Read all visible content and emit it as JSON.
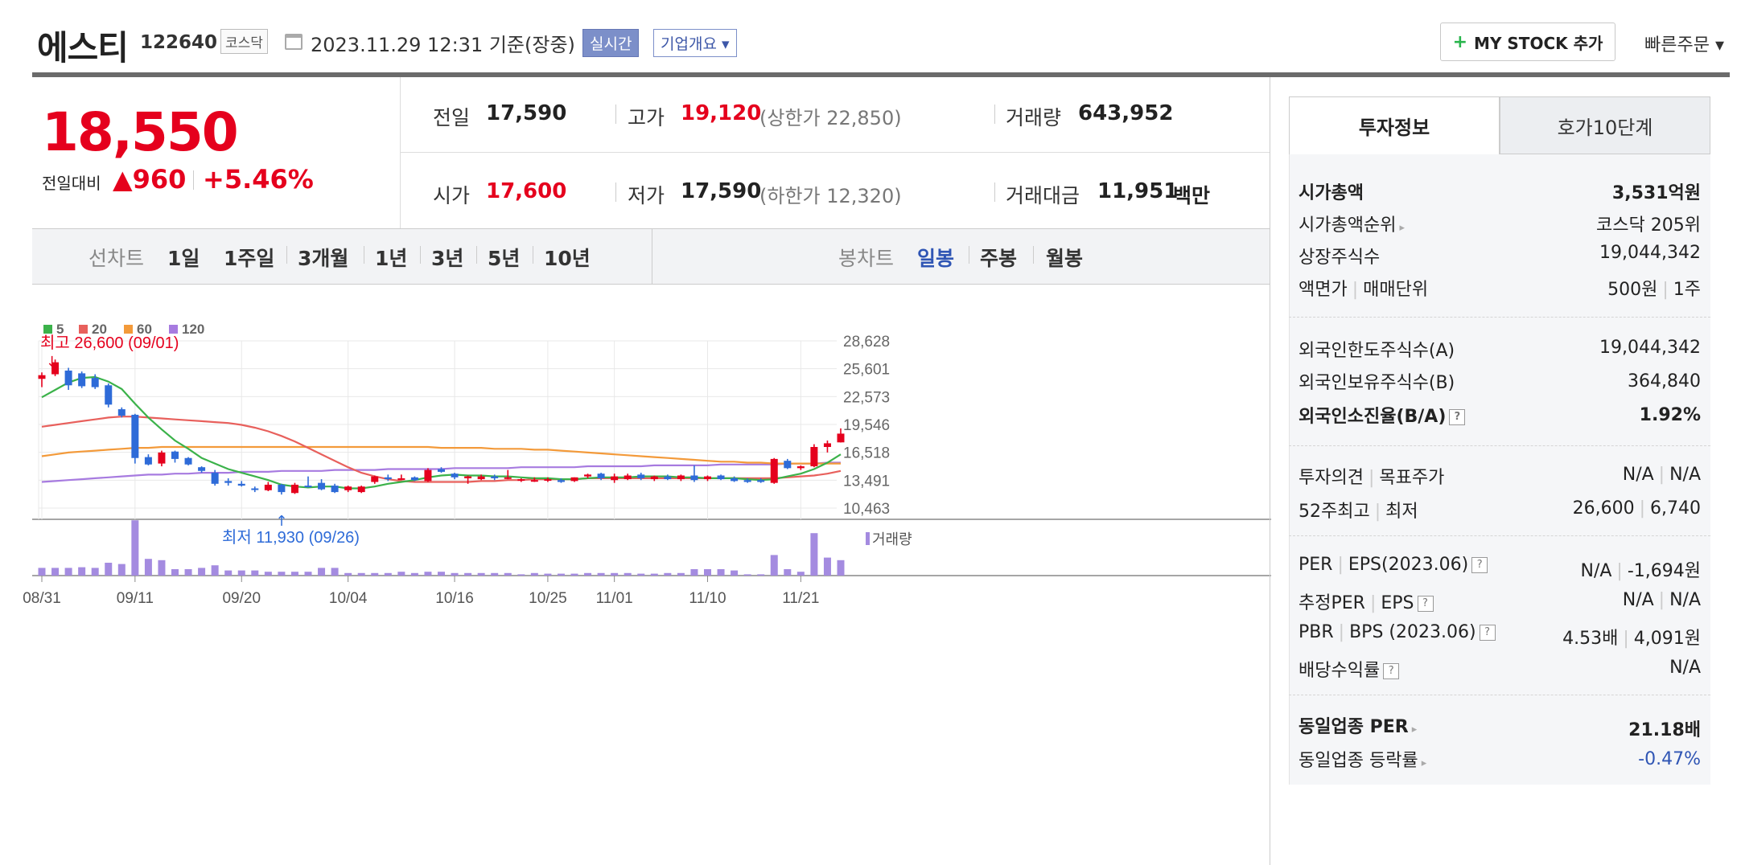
{
  "header": {
    "name": "에스티",
    "code": "122640",
    "market": "코스닥",
    "datetime": "2023.11.29 12:31  기준(장중)",
    "realtime_label": "실시간",
    "overview_label": "기업개요 ▾",
    "mystock_label": "MY STOCK 추가",
    "quick_order_label": "빠른주문 ▾"
  },
  "price": {
    "current": "18,550",
    "change_label": "전일대비",
    "change": "▲960",
    "change_pct": "+5.46%"
  },
  "quote": {
    "prev_label": "전일",
    "prev": "17,590",
    "high_label": "고가",
    "high": "19,120",
    "upper_limit": "(상한가 22,850)",
    "volume_label": "거래량",
    "volume": "643,952",
    "open_label": "시가",
    "open": "17,600",
    "low_label": "저가",
    "low": "17,590",
    "lower_limit": "(하한가 12,320)",
    "amount_label": "거래대금",
    "amount": "11,951",
    "amount_unit": "백만"
  },
  "period": {
    "line_label": "선차트",
    "periods": [
      "1일",
      "1주일",
      "3개월",
      "1년",
      "3년",
      "5년",
      "10년"
    ],
    "candle_label": "봉차트",
    "candles": [
      "일봉",
      "주봉",
      "월봉"
    ],
    "selected_candle": "일봉"
  },
  "chart_data": {
    "type": "candlestick",
    "legend": [
      {
        "name": "5",
        "color": "#3bb24a"
      },
      {
        "name": "20",
        "color": "#e8605c"
      },
      {
        "name": "60",
        "color": "#f39a3a"
      },
      {
        "name": "120",
        "color": "#a77be0"
      }
    ],
    "y_ticks": [
      "28,628",
      "25,601",
      "22,573",
      "19,546",
      "16,518",
      "13,491",
      "10,463"
    ],
    "ylim": [
      10463,
      28628
    ],
    "x_ticks": [
      "08/31",
      "09/11",
      "09/20",
      "10/04",
      "10/16",
      "10/25",
      "11/01",
      "11/10",
      "11/21"
    ],
    "high_annotation": "최고 26,600 (09/01)",
    "low_annotation": "최저 11,930 (09/26)",
    "volume_label": "거래량",
    "candles": [
      [
        24500,
        25200,
        23600,
        24900
      ],
      [
        25000,
        26600,
        24800,
        26300
      ],
      [
        25400,
        25700,
        23300,
        23800
      ],
      [
        25100,
        25300,
        23500,
        23700
      ],
      [
        24600,
        25000,
        23400,
        23600
      ],
      [
        23800,
        24000,
        21400,
        21700
      ],
      [
        21200,
        21400,
        20300,
        20500
      ],
      [
        20600,
        20700,
        15300,
        15900
      ],
      [
        16000,
        16300,
        15100,
        15200
      ],
      [
        15300,
        16700,
        15000,
        16500
      ],
      [
        16600,
        16700,
        15400,
        15800
      ],
      [
        15900,
        16000,
        15100,
        15200
      ],
      [
        14900,
        15000,
        14300,
        14500
      ],
      [
        14300,
        14600,
        12900,
        13100
      ],
      [
        13400,
        13700,
        12900,
        13200
      ],
      [
        13100,
        13400,
        12800,
        12900
      ],
      [
        12600,
        12800,
        12200,
        12500
      ],
      [
        12400,
        13300,
        12300,
        13000
      ],
      [
        13000,
        13100,
        11930,
        12200
      ],
      [
        12100,
        13200,
        12000,
        13000
      ],
      [
        12900,
        13900,
        12700,
        12800
      ],
      [
        13200,
        13600,
        12400,
        12500
      ],
      [
        12900,
        13100,
        12100,
        12200
      ],
      [
        12400,
        12900,
        12200,
        12800
      ],
      [
        12200,
        12900,
        12100,
        12800
      ],
      [
        13300,
        14000,
        13100,
        13900
      ],
      [
        13800,
        14100,
        13400,
        13600
      ],
      [
        13600,
        14100,
        13500,
        13700
      ],
      [
        13800,
        13900,
        13400,
        13500
      ],
      [
        13400,
        14800,
        13300,
        14600
      ],
      [
        14700,
        14900,
        14300,
        14400
      ],
      [
        14200,
        14300,
        13600,
        13800
      ],
      [
        13700,
        14000,
        13100,
        13900
      ],
      [
        13600,
        14100,
        13500,
        13900
      ],
      [
        13900,
        14100,
        13500,
        13700
      ],
      [
        13700,
        14600,
        13600,
        13800
      ],
      [
        13500,
        13700,
        13300,
        13600
      ],
      [
        13400,
        13800,
        13300,
        13500
      ],
      [
        13500,
        13800,
        13300,
        13600
      ],
      [
        13500,
        13700,
        13200,
        13300
      ],
      [
        13400,
        13800,
        13300,
        13800
      ],
      [
        13900,
        14200,
        13700,
        14100
      ],
      [
        14200,
        14300,
        13500,
        13700
      ],
      [
        13500,
        14200,
        13200,
        13900
      ],
      [
        13600,
        14200,
        13500,
        14000
      ],
      [
        14100,
        14300,
        13500,
        13700
      ],
      [
        13600,
        14000,
        13400,
        13900
      ],
      [
        13900,
        14100,
        13500,
        13600
      ],
      [
        13600,
        14100,
        13400,
        14000
      ],
      [
        14000,
        15100,
        13300,
        13500
      ],
      [
        13600,
        14000,
        13400,
        13900
      ],
      [
        14000,
        14100,
        13500,
        13600
      ],
      [
        13700,
        13900,
        13300,
        13400
      ],
      [
        13500,
        13700,
        13200,
        13300
      ],
      [
        13500,
        13700,
        13200,
        13300
      ],
      [
        13200,
        15900,
        13100,
        15800
      ],
      [
        15600,
        15800,
        14700,
        14800
      ],
      [
        14800,
        15100,
        14600,
        15000
      ],
      [
        15000,
        17400,
        14900,
        17100
      ],
      [
        17100,
        17800,
        16500,
        17500
      ],
      [
        17600,
        19120,
        17590,
        18550
      ]
    ],
    "ma5": [
      22500,
      23300,
      24100,
      24600,
      24700,
      24200,
      23400,
      21800,
      20300,
      19000,
      17800,
      16900,
      15900,
      15300,
      14700,
      14300,
      13900,
      13500,
      13000,
      12800,
      12700,
      12800,
      12800,
      12600,
      12600,
      12800,
      13100,
      13300,
      13500,
      13800,
      14000,
      14100,
      14000,
      14000,
      13900,
      13900,
      13800,
      13700,
      13700,
      13600,
      13600,
      13700,
      13800,
      13800,
      13800,
      13900,
      13900,
      13900,
      13800,
      13800,
      13700,
      13700,
      13700,
      13600,
      13500,
      13600,
      13900,
      14200,
      14700,
      15400,
      16300
    ],
    "ma20": [
      19300,
      19500,
      19700,
      19900,
      20100,
      20300,
      20400,
      20400,
      20300,
      20200,
      20100,
      20000,
      19900,
      19800,
      19700,
      19500,
      19200,
      18800,
      18300,
      17700,
      17000,
      16300,
      15600,
      14900,
      14300,
      13900,
      13600,
      13400,
      13300,
      13300,
      13300,
      13300,
      13300,
      13400,
      13400,
      13500,
      13500,
      13600,
      13600,
      13600,
      13600,
      13700,
      13700,
      13700,
      13700,
      13700,
      13700,
      13700,
      13700,
      13700,
      13700,
      13700,
      13700,
      13700,
      13700,
      13700,
      13800,
      13900,
      14000,
      14200,
      14500
    ],
    "ma60": [
      16100,
      16300,
      16500,
      16600,
      16700,
      16800,
      16900,
      17000,
      17000,
      17100,
      17100,
      17100,
      17100,
      17100,
      17100,
      17100,
      17100,
      17100,
      17100,
      17100,
      17100,
      17100,
      17100,
      17100,
      17100,
      17100,
      17100,
      17100,
      17100,
      17100,
      17000,
      17000,
      17000,
      17000,
      16900,
      16900,
      16900,
      16800,
      16800,
      16700,
      16600,
      16500,
      16400,
      16300,
      16200,
      16100,
      16000,
      15900,
      15800,
      15700,
      15600,
      15500,
      15500,
      15400,
      15400,
      15300,
      15300,
      15300,
      15300,
      15300,
      15300
    ],
    "ma120": [
      13300,
      13400,
      13500,
      13600,
      13700,
      13800,
      13900,
      14000,
      14100,
      14100,
      14200,
      14200,
      14300,
      14300,
      14300,
      14400,
      14400,
      14400,
      14500,
      14500,
      14500,
      14500,
      14600,
      14600,
      14600,
      14600,
      14700,
      14700,
      14700,
      14700,
      14700,
      14800,
      14800,
      14800,
      14800,
      14800,
      14900,
      14900,
      14900,
      14900,
      14900,
      15000,
      15000,
      15000,
      15000,
      15000,
      15100,
      15100,
      15100,
      15100,
      15100,
      15200,
      15200,
      15200,
      15200,
      15200,
      15300,
      15300,
      15300,
      15400,
      15400
    ],
    "volume": [
      0.12,
      0.12,
      0.12,
      0.13,
      0.12,
      0.2,
      0.18,
      0.86,
      0.26,
      0.24,
      0.1,
      0.1,
      0.12,
      0.16,
      0.08,
      0.08,
      0.08,
      0.06,
      0.06,
      0.06,
      0.06,
      0.12,
      0.12,
      0.04,
      0.04,
      0.04,
      0.04,
      0.06,
      0.04,
      0.06,
      0.06,
      0.04,
      0.04,
      0.04,
      0.04,
      0.04,
      0.02,
      0.04,
      0.03,
      0.03,
      0.03,
      0.04,
      0.04,
      0.04,
      0.04,
      0.03,
      0.03,
      0.04,
      0.04,
      0.1,
      0.1,
      0.1,
      0.08,
      0.02,
      0.02,
      0.32,
      0.1,
      0.06,
      0.66,
      0.28,
      0.24
    ]
  },
  "panel": {
    "tab_invest": "투자정보",
    "tab_orderbook": "호가10단계",
    "market_cap_label": "시가총액",
    "market_cap": "3,531억원",
    "market_cap_rank_label": "시가총액순위",
    "market_cap_rank": "코스닥 205위",
    "shares_label": "상장주식수",
    "shares": "19,044,342",
    "face_value_label": "액면가",
    "trade_unit_label": "매매단위",
    "face_value": "500원",
    "trade_unit": "1주",
    "foreign_limit_label": "외국인한도주식수(A)",
    "foreign_limit": "19,044,342",
    "foreign_hold_label": "외국인보유주식수(B)",
    "foreign_hold": "364,840",
    "foreign_ratio_label": "외국인소진율(B/A)",
    "foreign_ratio": "1.92%",
    "opinion_label": "투자의견",
    "target_label": "목표주가",
    "opinion": "N/A",
    "target": "N/A",
    "w52_high_label": "52주최고",
    "w52_low_label": "최저",
    "w52_high": "26,600",
    "w52_low": "6,740",
    "per_label": "PER",
    "eps_label": "EPS(2023.06)",
    "per": "N/A",
    "eps": "-1,694원",
    "est_per_label": "추정PER",
    "est_eps_label": "EPS",
    "est_per": "N/A",
    "est_eps": "N/A",
    "pbr_label": "PBR",
    "bps_label": "BPS (2023.06)",
    "pbr": "4.53배",
    "bps": "4,091원",
    "dividend_label": "배당수익률",
    "dividend": "N/A",
    "industry_per_label": "동일업종 PER",
    "industry_per": "21.18배",
    "industry_chg_label": "동일업종 등락률",
    "industry_chg": "-0.47%"
  }
}
